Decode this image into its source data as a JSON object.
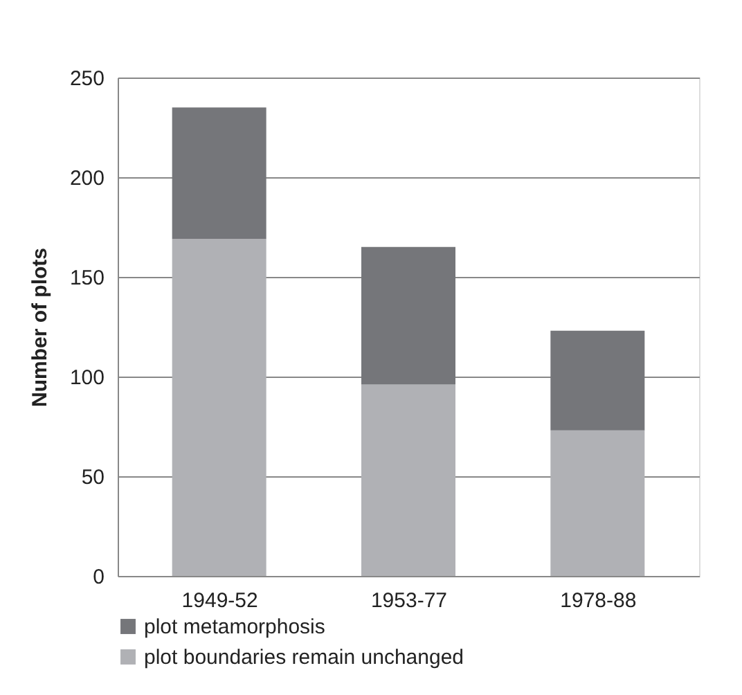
{
  "chart_data": {
    "type": "bar",
    "stacked": true,
    "ylabel": "Number of plots",
    "categories": [
      "1949-52",
      "1953-77",
      "1978-88"
    ],
    "series": [
      {
        "name": "plot boundaries remain unchanged",
        "color": "#b0b1b5",
        "values": [
          169,
          96,
          73
        ]
      },
      {
        "name": "plot metamorphosis",
        "color": "#75767a",
        "values": [
          66,
          69,
          50
        ]
      }
    ],
    "ylim": [
      0,
      250
    ],
    "yticks": [
      0,
      50,
      100,
      150,
      200,
      250
    ],
    "grid": "y",
    "legend": "bottom"
  }
}
